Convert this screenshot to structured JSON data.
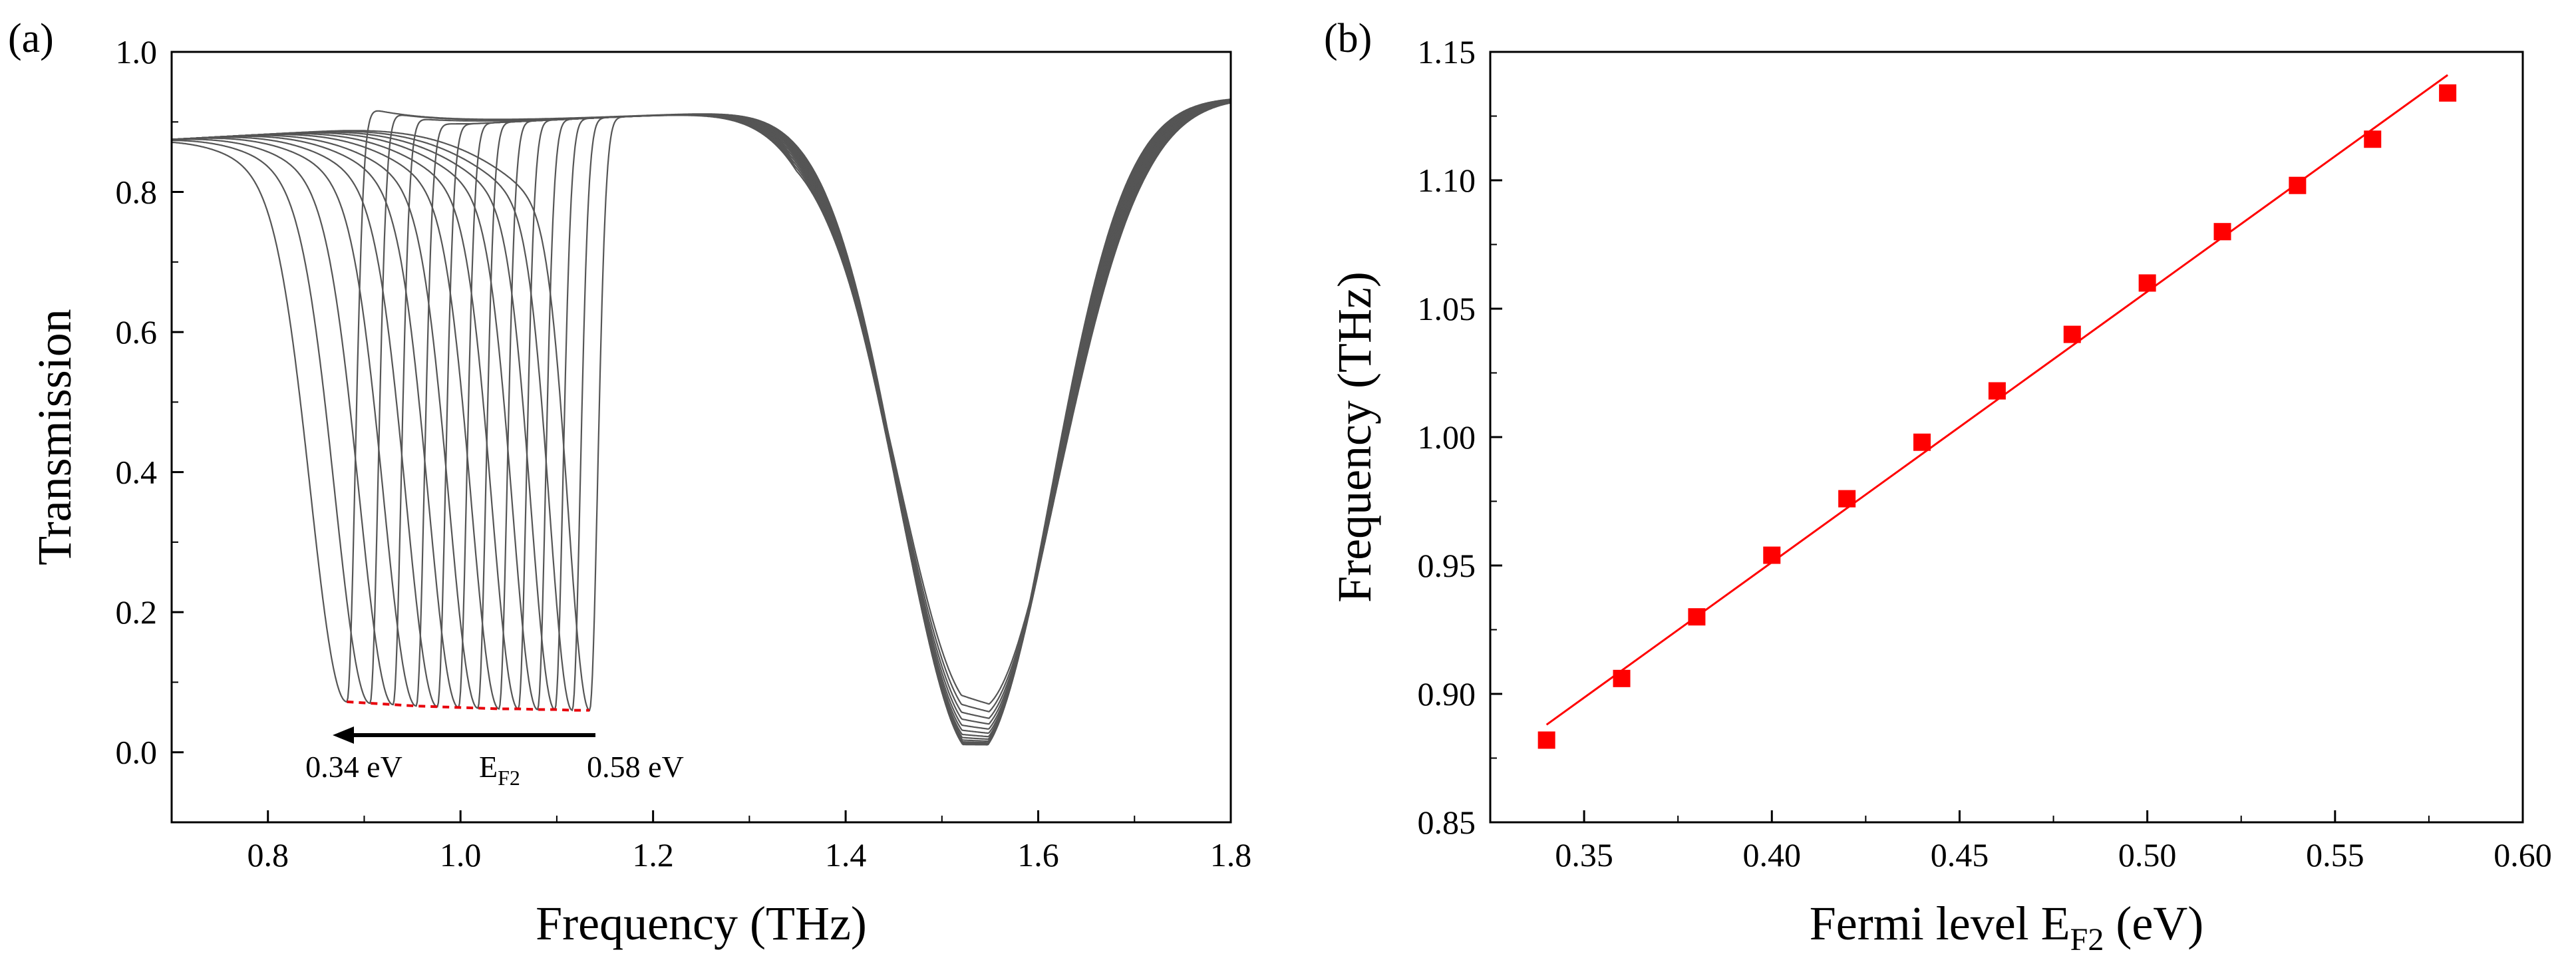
{
  "chart_data": [
    {
      "panel": "(a)",
      "type": "line",
      "xlabel": "Frequency (THz)",
      "ylabel": "Transmission",
      "xlim": [
        0.7,
        1.8
      ],
      "ylim": [
        -0.1,
        1.0
      ],
      "xticks": [
        "0.8",
        "1.0",
        "1.2",
        "1.4",
        "1.6",
        "1.8"
      ],
      "yticks": [
        "0.0",
        "0.2",
        "0.4",
        "0.6",
        "0.8",
        "1.0"
      ],
      "series_color": "#555555",
      "series_count": 13,
      "fermi_levels_eV": [
        0.34,
        0.36,
        0.38,
        0.4,
        0.42,
        0.44,
        0.46,
        0.48,
        0.5,
        0.52,
        0.54,
        0.56,
        0.58
      ],
      "dip1_center_THz": [
        0.882,
        0.906,
        0.93,
        0.954,
        0.976,
        0.998,
        1.018,
        1.04,
        1.06,
        1.08,
        1.098,
        1.116,
        1.134
      ],
      "dip1_min_T": [
        0.072,
        0.07,
        0.068,
        0.066,
        0.065,
        0.064,
        0.063,
        0.062,
        0.062,
        0.061,
        0.061,
        0.06,
        0.06
      ],
      "dip2_center_THz": 1.535,
      "dip2_min_T": 0.01,
      "minima_trace_color": "#e8000b",
      "annotations": {
        "arrow_left_label": "0.34 eV",
        "arrow_center_label": "E",
        "arrow_center_sub": "F2",
        "arrow_right_label": "0.58 eV"
      }
    },
    {
      "panel": "(b)",
      "type": "scatter",
      "xlabel_main": "Fermi level E",
      "xlabel_sub": "F2",
      "xlabel_tail": " (eV)",
      "ylabel": "Frequency (THz)",
      "xlim": [
        0.325,
        0.6
      ],
      "ylim": [
        0.85,
        1.15
      ],
      "xticks": [
        "0.35",
        "0.40",
        "0.45",
        "0.50",
        "0.55",
        "0.60"
      ],
      "yticks": [
        "0.85",
        "0.90",
        "0.95",
        "1.00",
        "1.05",
        "1.10",
        "1.15"
      ],
      "x": [
        0.34,
        0.36,
        0.38,
        0.4,
        0.42,
        0.44,
        0.46,
        0.48,
        0.5,
        0.52,
        0.54,
        0.56,
        0.58
      ],
      "y": [
        0.882,
        0.906,
        0.93,
        0.954,
        0.976,
        0.998,
        1.018,
        1.04,
        1.06,
        1.08,
        1.098,
        1.116,
        1.134
      ],
      "fit": {
        "x": [
          0.34,
          0.58
        ],
        "y": [
          0.888,
          1.141
        ]
      },
      "marker_color": "#ff0000",
      "fit_color": "#ff0000"
    }
  ]
}
